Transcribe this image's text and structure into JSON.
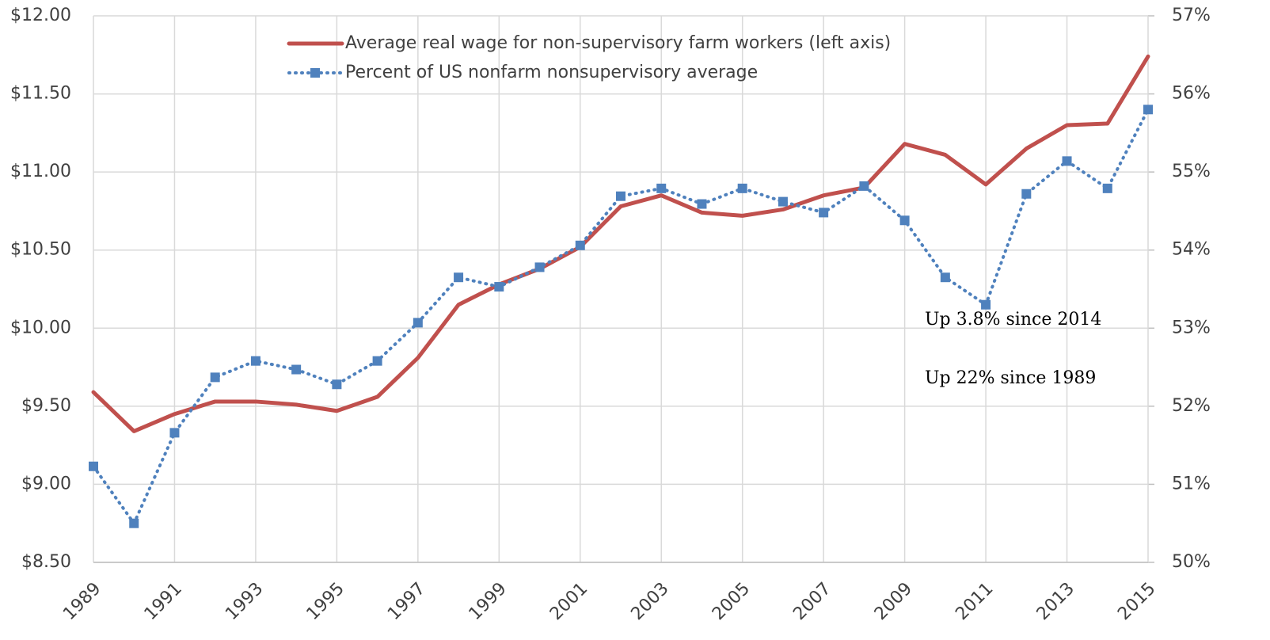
{
  "chart_data": {
    "type": "line",
    "x": [
      1989,
      1990,
      1991,
      1992,
      1993,
      1994,
      1995,
      1996,
      1997,
      1998,
      1999,
      2000,
      2001,
      2002,
      2003,
      2004,
      2005,
      2006,
      2007,
      2008,
      2009,
      2010,
      2011,
      2012,
      2013,
      2014,
      2015
    ],
    "series": [
      {
        "name": "Average real wage for non-supervisory farm workers (left axis)",
        "color": "#c0504d",
        "axis": "y",
        "values": [
          9.59,
          9.34,
          9.45,
          9.53,
          9.53,
          9.51,
          9.47,
          9.56,
          9.81,
          10.15,
          10.28,
          10.38,
          10.52,
          10.78,
          10.85,
          10.74,
          10.72,
          10.76,
          10.85,
          10.9,
          11.18,
          11.11,
          10.92,
          11.15,
          11.3,
          11.31,
          11.74
        ]
      },
      {
        "name": "Percent of US nonfarm nonsupervisory average",
        "color": "#4f81bd",
        "axis": "y2",
        "values": [
          51.23,
          50.5,
          51.66,
          52.37,
          52.58,
          52.47,
          52.28,
          52.58,
          53.07,
          53.65,
          53.53,
          53.78,
          54.06,
          54.69,
          54.79,
          54.59,
          54.79,
          54.62,
          54.48,
          54.82,
          54.38,
          53.65,
          53.3,
          54.72,
          55.14,
          54.79,
          55.8
        ]
      }
    ],
    "xlim": [
      1989,
      2015
    ],
    "xticks": [
      1989,
      1991,
      1993,
      1995,
      1997,
      1999,
      2001,
      2003,
      2005,
      2007,
      2009,
      2011,
      2013,
      2015
    ],
    "ylim": [
      8.5,
      12
    ],
    "yticks": [
      {
        "value": 8.5,
        "label": "$8.50"
      },
      {
        "value": 9,
        "label": "$9.00"
      },
      {
        "value": 9.5,
        "label": "$9.50"
      },
      {
        "value": 10,
        "label": "$10.00"
      },
      {
        "value": 10.5,
        "label": "$10.50"
      },
      {
        "value": 11,
        "label": "$11.00"
      },
      {
        "value": 11.5,
        "label": "$11.50"
      },
      {
        "value": 12,
        "label": "$12.00"
      }
    ],
    "y2lim": [
      50,
      57
    ],
    "y2ticks": [
      {
        "value": 50,
        "label": "50%"
      },
      {
        "value": 51,
        "label": "51%"
      },
      {
        "value": 52,
        "label": "52%"
      },
      {
        "value": 53,
        "label": "53%"
      },
      {
        "value": 54,
        "label": "54%"
      },
      {
        "value": 55,
        "label": "55%"
      },
      {
        "value": 56,
        "label": "56%"
      },
      {
        "value": 57,
        "label": "57%"
      }
    ],
    "grid": true,
    "annotations": [
      "Up 3.8% since 2014",
      "Up 22% since 1989"
    ]
  }
}
